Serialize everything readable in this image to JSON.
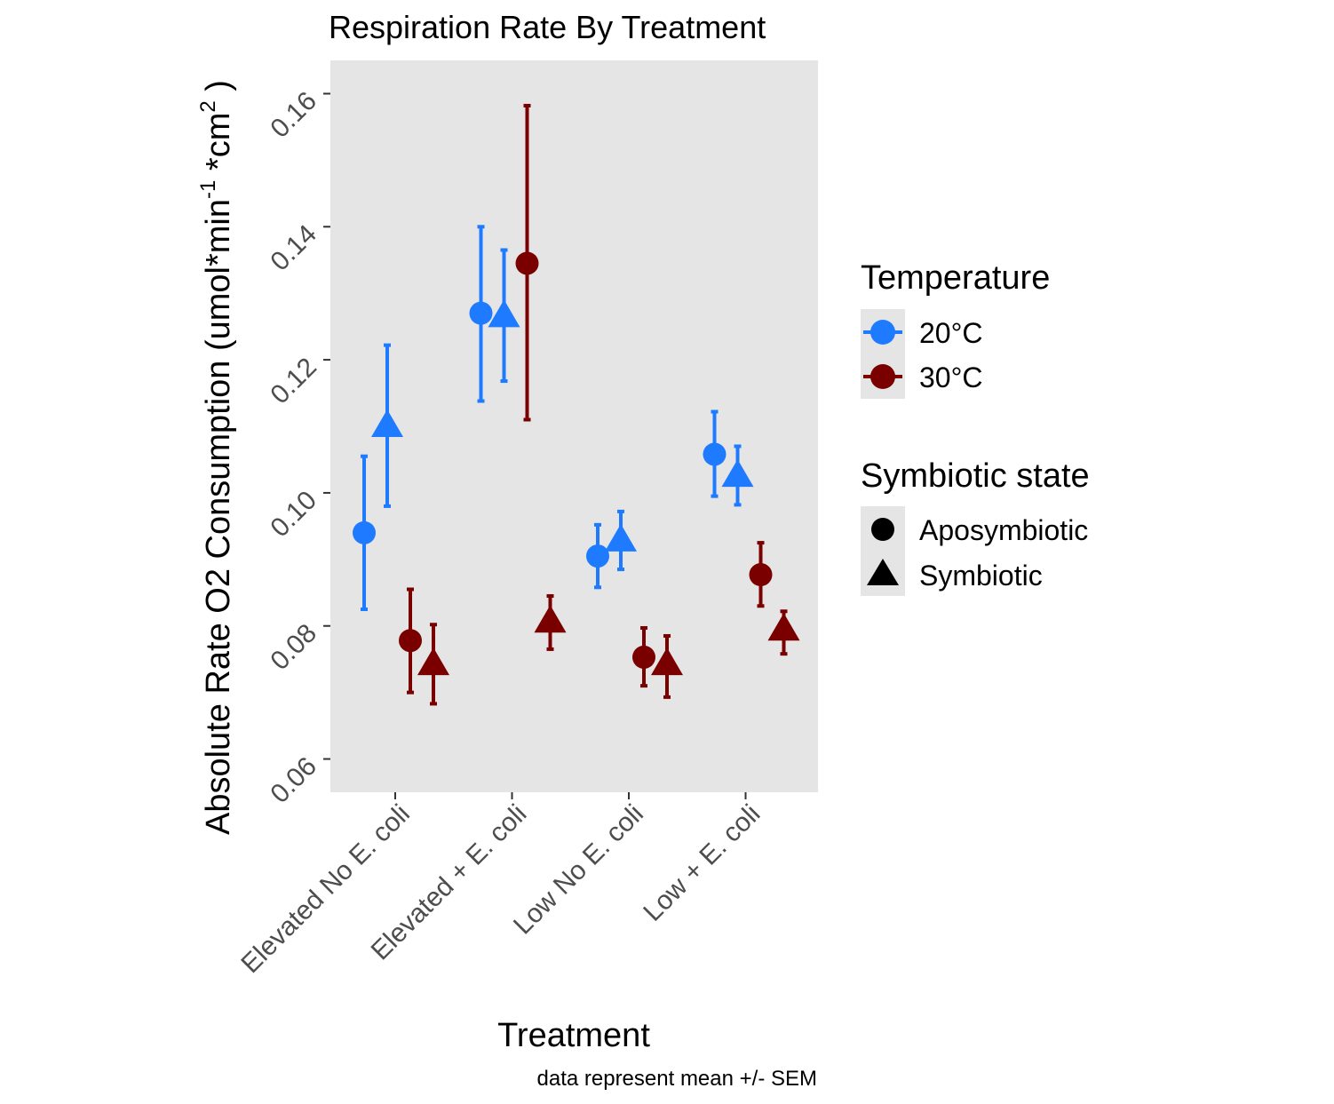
{
  "chart_data": {
    "type": "scatter",
    "title": "Respiration Rate By Treatment",
    "xlabel": "Treatment",
    "ylabel_main": "Absolute Rate O2 Consumption (umol*min",
    "ylabel_sup1": "-1",
    "ylabel_mid": " *cm",
    "ylabel_sup2": "2",
    "ylabel_end": " )",
    "caption": "data represent mean +/- SEM",
    "categories": [
      "Elevated No E. coli",
      "Elevated + E. coli",
      "Low No E. coli",
      "Low + E. coli"
    ],
    "ylim": [
      0.055,
      0.165
    ],
    "y_ticks": [
      0.06,
      0.08,
      0.1,
      0.12,
      0.14,
      0.16
    ],
    "y_tick_labels": [
      "0.06",
      "0.08",
      "0.10",
      "0.12",
      "0.14",
      "0.16"
    ],
    "grid": false,
    "legend_placement": "right",
    "legend": {
      "temperature": {
        "title": "Temperature",
        "entries": [
          {
            "label": "20°C",
            "color": "#1e7bff"
          },
          {
            "label": "30°C",
            "color": "#7a0000"
          }
        ]
      },
      "symbiotic": {
        "title": "Symbiotic state",
        "entries": [
          {
            "label": "Aposymbiotic",
            "shape": "circle"
          },
          {
            "label": "Symbiotic",
            "shape": "triangle"
          }
        ]
      }
    },
    "series": [
      {
        "temperature": "20°C",
        "state": "Aposymbiotic",
        "color": "#1e7bff",
        "shape": "circle",
        "values": [
          0.094,
          0.127,
          0.0905,
          0.1058
        ],
        "lower": [
          0.0825,
          0.1138,
          0.0858,
          0.0995
        ],
        "upper": [
          0.1055,
          0.14,
          0.0952,
          0.1122
        ]
      },
      {
        "temperature": "20°C",
        "state": "Symbiotic",
        "color": "#1e7bff",
        "shape": "triangle",
        "values": [
          0.11,
          0.1265,
          0.0928,
          0.1025
        ],
        "lower": [
          0.098,
          0.1168,
          0.0885,
          0.0982
        ],
        "upper": [
          0.1222,
          0.1365,
          0.0972,
          0.107
        ]
      },
      {
        "temperature": "30°C",
        "state": "Aposymbiotic",
        "color": "#7a0000",
        "shape": "circle",
        "values": [
          0.0778,
          0.1345,
          0.0753,
          0.0877
        ],
        "lower": [
          0.07,
          0.111,
          0.071,
          0.083
        ],
        "upper": [
          0.0855,
          0.1582,
          0.0797,
          0.0925
        ]
      },
      {
        "temperature": "30°C",
        "state": "Symbiotic",
        "color": "#7a0000",
        "shape": "triangle",
        "values": [
          0.0742,
          0.0806,
          0.0742,
          0.0794
        ],
        "lower": [
          0.0683,
          0.0765,
          0.0693,
          0.0758
        ],
        "upper": [
          0.0802,
          0.0845,
          0.0785,
          0.0822
        ]
      }
    ]
  }
}
